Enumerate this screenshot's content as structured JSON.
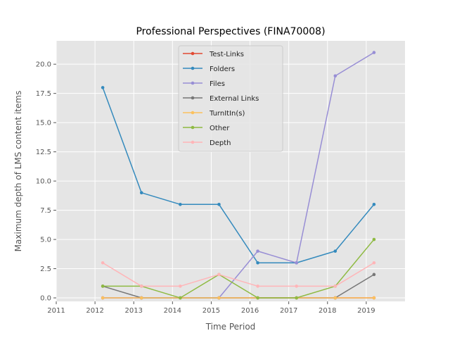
{
  "chart_data": {
    "type": "line",
    "title": "Professional Perspectives (FINA70008)",
    "xlabel": "Time Period",
    "ylabel": "Maximum depth of LMS content items",
    "xlim": [
      2011,
      2020
    ],
    "ylim": [
      -0.3,
      22.0
    ],
    "xticks": [
      2011,
      2012,
      2013,
      2014,
      2015,
      2016,
      2017,
      2018,
      2019
    ],
    "xtick_labels": [
      "2011",
      "2012",
      "2013",
      "2014",
      "2015",
      "2016",
      "2017",
      "2018",
      "2019"
    ],
    "yticks": [
      0,
      2.5,
      5,
      7.5,
      10,
      12.5,
      15,
      17.5,
      20
    ],
    "ytick_labels": [
      "0.0",
      "2.5",
      "5.0",
      "7.5",
      "10.0",
      "12.5",
      "15.0",
      "17.5",
      "20.0"
    ],
    "grid": true,
    "legend_position": "top-center",
    "x": [
      2012.2,
      2013.2,
      2014.2,
      2015.2,
      2016.2,
      2017.2,
      2018.2,
      2019.2
    ],
    "series": [
      {
        "name": "Test-Links",
        "color": "#E24A33",
        "values": [
          0,
          0,
          0,
          0,
          0,
          0,
          0,
          0
        ]
      },
      {
        "name": "Folders",
        "color": "#348ABD",
        "values": [
          18,
          9,
          8,
          8,
          3,
          3,
          4,
          8
        ]
      },
      {
        "name": "Files",
        "color": "#988ED5",
        "values": [
          0,
          0,
          0,
          0,
          4,
          3,
          19,
          21
        ]
      },
      {
        "name": "External Links",
        "color": "#777777",
        "values": [
          1,
          0,
          0,
          0,
          0,
          0,
          0,
          2
        ]
      },
      {
        "name": "TurnItIn(s)",
        "color": "#FBC15E",
        "values": [
          0,
          0,
          0,
          0,
          0,
          0,
          0,
          0
        ]
      },
      {
        "name": "Other",
        "color": "#8EBA42",
        "values": [
          1,
          1,
          0,
          2,
          0,
          0,
          1,
          5
        ]
      },
      {
        "name": "Depth",
        "color": "#FFB5B8",
        "values": [
          3,
          1,
          1,
          2,
          1,
          1,
          1,
          3
        ]
      }
    ]
  }
}
